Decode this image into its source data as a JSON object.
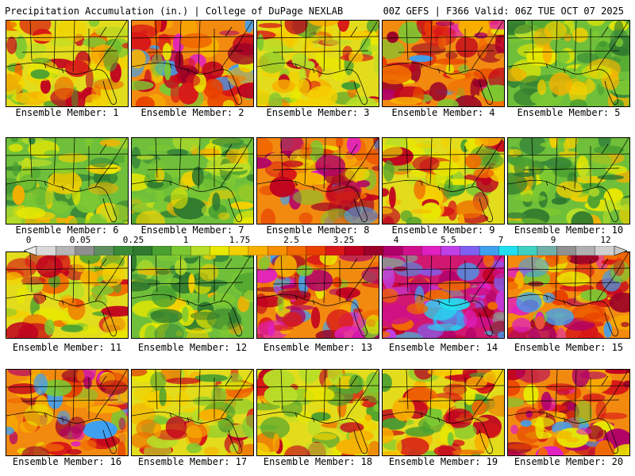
{
  "header": {
    "left": "Precipitation Accumulation (in.) | College of DuPage NEXLAB",
    "right": "00Z GEFS | F366 Valid: 06Z TUE OCT 07 2025"
  },
  "colorbar": {
    "ticks": [
      "0",
      "0.05",
      "0.25",
      "1",
      "1.75",
      "2.5",
      "3.25",
      "4",
      "5.5",
      "7",
      "9",
      "12"
    ],
    "colors": [
      "#d9d9d9",
      "#b5b5b5",
      "#8f8f8f",
      "#5f8f5f",
      "#3a8a3a",
      "#2f7a2f",
      "#4aa030",
      "#7cc832",
      "#b8de28",
      "#e8e800",
      "#f5d000",
      "#f8b000",
      "#f59000",
      "#f06a00",
      "#e84000",
      "#d81818",
      "#c00020",
      "#9a0028",
      "#b0006a",
      "#d0108a",
      "#e020c0",
      "#c040e8",
      "#8060f0",
      "#40a0f0",
      "#20e0f0",
      "#40d0c0",
      "#70b0a8",
      "#909090",
      "#b0b0b0",
      "#d0d0d0"
    ]
  },
  "members": [
    {
      "label": "Ensemble Member: 1",
      "theme": "mixed"
    },
    {
      "label": "Ensemble Member: 2",
      "theme": "wet"
    },
    {
      "label": "Ensemble Member: 3",
      "theme": "mixed"
    },
    {
      "label": "Ensemble Member: 4",
      "theme": "wet"
    },
    {
      "label": "Ensemble Member: 5",
      "theme": "green"
    },
    {
      "label": "Ensemble Member: 6",
      "theme": "green"
    },
    {
      "label": "Ensemble Member: 7",
      "theme": "green"
    },
    {
      "label": "Ensemble Member: 8",
      "theme": "wet"
    },
    {
      "label": "Ensemble Member: 9",
      "theme": "mixed"
    },
    {
      "label": "Ensemble Member: 10",
      "theme": "green"
    },
    {
      "label": "Ensemble Member: 11",
      "theme": "mixed"
    },
    {
      "label": "Ensemble Member: 12",
      "theme": "green"
    },
    {
      "label": "Ensemble Member: 13",
      "theme": "wet"
    },
    {
      "label": "Ensemble Member: 14",
      "theme": "verywet"
    },
    {
      "label": "Ensemble Member: 15",
      "theme": "wet"
    },
    {
      "label": "Ensemble Member: 16",
      "theme": "wet"
    },
    {
      "label": "Ensemble Member: 17",
      "theme": "mixed"
    },
    {
      "label": "Ensemble Member: 18",
      "theme": "mixed"
    },
    {
      "label": "Ensemble Member: 19",
      "theme": "mixed"
    },
    {
      "label": "Ensemble Member: 20",
      "theme": "wet"
    }
  ]
}
